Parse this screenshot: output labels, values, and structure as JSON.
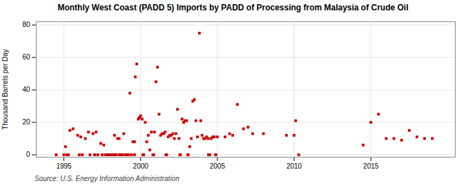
{
  "chart_data": {
    "type": "scatter",
    "title": "Monthly West Coast (PADD 5) Imports by PADD of Processing from Malaysia of Crude Oil",
    "ylabel": "Thousand Barrels per Day",
    "annotation": "Source: U.S. Energy Information Administration",
    "color": "#cc0000",
    "marker": "square",
    "grid": true,
    "xlim": [
      1993.2,
      2020.5
    ],
    "ylim": [
      -1.5,
      82
    ],
    "xticks": [
      1995,
      2000,
      2005,
      2010,
      2015
    ],
    "yticks": [
      0,
      20,
      40,
      60,
      80
    ],
    "x": [
      1995.1,
      1995.4,
      1995.6,
      1995.9,
      1996.1,
      1996.4,
      1996.6,
      1996.9,
      1997.0,
      1997.1,
      1997.4,
      1997.6,
      1997.0,
      1997.5,
      1997.7,
      1997.9,
      1998.0,
      1998.1,
      1998.2,
      1998.4,
      1998.3,
      1998.5,
      1998.6,
      1998.7,
      1998.8,
      1998.9,
      1999.0,
      1999.1,
      1999.2,
      1999.3,
      1999.4,
      1999.5,
      1999.6,
      1999.65,
      1999.75,
      1999.85,
      1999.92,
      2000.0,
      2000.1,
      2000.2,
      2000.3,
      2000.4,
      2000.5,
      2000.6,
      2000.7,
      2000.8,
      2000.9,
      2001.0,
      2001.1,
      2001.2,
      2001.3,
      2001.4,
      2001.5,
      2001.6,
      2001.7,
      2001.8,
      2001.9,
      2002.0,
      2002.1,
      2002.2,
      2002.3,
      2002.4,
      2002.5,
      2002.6,
      2002.7,
      2002.8,
      2002.9,
      2003.0,
      2003.1,
      2003.2,
      2003.3,
      2003.4,
      2003.5,
      2003.6,
      2003.7,
      2003.83,
      2003.92,
      2004.0,
      2004.1,
      2004.2,
      2004.3,
      2004.4,
      2004.5,
      2004.6,
      2004.7,
      2004.8,
      2004.9,
      2005.0,
      2005.5,
      2005.8,
      2006.0,
      2006.3,
      2006.7,
      2007.0,
      2007.3,
      2008.0,
      2009.5,
      2010.0,
      2010.1,
      2010.3,
      2014.5,
      2015.0,
      2015.5,
      2016.0,
      2016.5,
      2017.0,
      2017.5,
      2018.0,
      2018.5,
      2019.0,
      1994.5,
      1995.0,
      1995.2,
      1995.3,
      1996.0,
      1996.2,
      1996.7,
      1997.2,
      1997.8,
      1998.3,
      1998.6,
      1999.0,
      1999.6,
      2000.15,
      2000.85,
      2001.65,
      2002.55,
      2003.08,
      2004.42,
      2004.88
    ],
    "values": [
      5,
      15,
      16,
      12,
      11,
      10,
      14,
      13,
      0,
      14,
      7,
      6,
      0,
      0,
      0,
      0,
      0,
      0,
      0,
      0,
      12,
      10,
      10,
      0,
      0,
      13,
      0,
      0,
      0,
      38,
      0,
      8,
      8,
      48,
      56,
      22,
      23,
      24,
      22,
      0,
      20,
      8,
      12,
      3,
      14,
      0,
      14,
      45,
      54,
      25,
      12,
      13,
      13,
      14,
      0,
      11,
      12,
      12,
      13,
      10,
      13,
      28,
      10,
      0,
      22,
      20,
      21,
      21,
      0,
      5,
      10,
      33,
      34,
      21,
      11,
      75,
      21,
      12,
      10,
      10,
      11,
      10,
      0,
      10,
      11,
      11,
      0,
      11,
      11,
      13,
      12,
      31,
      16,
      17,
      13,
      13,
      12,
      12,
      21,
      0,
      6,
      20,
      25,
      10,
      10,
      9,
      15,
      11,
      10,
      10,
      0,
      0,
      0,
      0,
      0,
      0,
      0,
      0,
      0,
      0,
      0,
      0,
      0,
      0,
      0,
      0,
      0,
      0,
      0,
      0
    ]
  }
}
